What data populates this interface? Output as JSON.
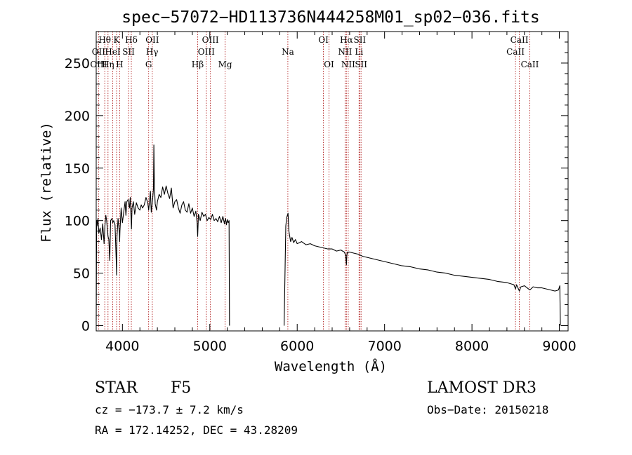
{
  "chart_data": {
    "type": "line",
    "title": "spec−57072−HD113736N444258M01_sp02−036.fits",
    "xlabel": "Wavelength (Å)",
    "ylabel": "Flux (relative)",
    "xlim": [
      3700,
      9100
    ],
    "ylim": [
      -5,
      280
    ],
    "xticks": [
      4000,
      5000,
      6000,
      7000,
      8000,
      9000
    ],
    "yticks": [
      0,
      50,
      100,
      150,
      200,
      250
    ],
    "grid": false,
    "series": [
      {
        "name": "spectrum",
        "color": "#000000",
        "segments": [
          {
            "x": [
              3700,
              3705,
              3710,
              3720,
              3730,
              3745,
              3760,
              3775,
              3790,
              3800,
              3810,
              3820,
              3835,
              3845,
              3855,
              3865,
              3880,
              3890,
              3900,
              3915,
              3930,
              3933,
              3938,
              3950,
              3965,
              3968,
              3972,
              3985,
              4000,
              4015,
              4030,
              4040,
              4050,
              4065,
              4080,
              4090,
              4100,
              4103,
              4110,
              4125,
              4140,
              4160,
              4180,
              4200,
              4215,
              4230,
              4250,
              4270,
              4290,
              4300,
              4310,
              4320,
              4330,
              4345,
              4355,
              4360,
              4365,
              4375,
              4390,
              4400,
              4420,
              4440,
              4460,
              4480,
              4500,
              4520,
              4540,
              4560,
              4580,
              4600,
              4620,
              4640,
              4660,
              4680,
              4700,
              4720,
              4740,
              4760,
              4780,
              4800,
              4820,
              4840,
              4855,
              4861,
              4870,
              4890,
              4910,
              4930,
              4950,
              4970,
              4990,
              5010,
              5030,
              5050,
              5070,
              5090,
              5110,
              5130,
              5150,
              5167,
              5170,
              5180,
              5190,
              5200,
              5210,
              5220,
              5225
            ],
            "y": [
              5,
              100,
              95,
              102,
              88,
              93,
              82,
              97,
              78,
              95,
              105,
              100,
              85,
              82,
              62,
              100,
              102,
              98,
              100,
              96,
              60,
              48,
              85,
              102,
              88,
              80,
              90,
              112,
              98,
              108,
              118,
              105,
              118,
              120,
              112,
              122,
              100,
              92,
              112,
              118,
              106,
              117,
              112,
              110,
              115,
              112,
              115,
              122,
              117,
              110,
              118,
              128,
              108,
              120,
              130,
              172,
              135,
              116,
              110,
              118,
              125,
              122,
              132,
              125,
              133,
              126,
              121,
              131,
              112,
              118,
              120,
              112,
              107,
              115,
              118,
              110,
              108,
              116,
              107,
              112,
              104,
              109,
              98,
              85,
              106,
              100,
              108,
              104,
              106,
              100,
              103,
              101,
              106,
              100,
              102,
              99,
              104,
              98,
              104,
              97,
              99,
              102,
              96,
              101,
              98,
              100,
              0
            ]
          },
          {
            "x": [
              5850,
              5870,
              5880,
              5895,
              5905,
              5915,
              5925,
              5940,
              5960,
              5980,
              6000,
              6050,
              6100,
              6150,
              6200,
              6250,
              6300,
              6350,
              6400,
              6450,
              6500,
              6540,
              6555,
              6563,
              6568,
              6575,
              6600,
              6650,
              6700,
              6750,
              6800,
              6850,
              6900,
              6950,
              7000,
              7100,
              7200,
              7300,
              7400,
              7500,
              7600,
              7700,
              7800,
              7900,
              8000,
              8100,
              8200,
              8300,
              8400,
              8480,
              8498,
              8510,
              8542,
              8560,
              8600,
              8662,
              8700,
              8750,
              8800,
              8850,
              8900,
              8950,
              8990,
              9005,
              9012
            ],
            "y": [
              0,
              95,
              103,
              107,
              90,
              85,
              80,
              84,
              79,
              82,
              78,
              80,
              77,
              78,
              76,
              75,
              74,
              73,
              73,
              71,
              72,
              70,
              67,
              58,
              67,
              70,
              70,
              69,
              68,
              66,
              65,
              64,
              63,
              62,
              61,
              59,
              57,
              56,
              54,
              53,
              51,
              50,
              48,
              47,
              46,
              45,
              44,
              42,
              41,
              39,
              35,
              39,
              33,
              37,
              38,
              34,
              37,
              36,
              36,
              35,
              34,
              33,
              34,
              38,
              0
            ]
          }
        ]
      }
    ],
    "lines": {
      "top": [
        {
          "label": "Hθ",
          "x": 3798
        },
        {
          "label": "K",
          "x": 3933
        },
        {
          "label": "Hδ",
          "x": 4102
        },
        {
          "label": "OII",
          "x": 4342
        },
        {
          "label": "OIII",
          "x": 5007
        },
        {
          "label": "OI",
          "x": 6300
        },
        {
          "label": "Hα",
          "x": 6563
        },
        {
          "label": "SII",
          "x": 6716
        },
        {
          "label": "CaII",
          "x": 8542
        }
      ],
      "mid": [
        {
          "label": "OII",
          "x": 3727
        },
        {
          "label": "HeI",
          "x": 3889
        },
        {
          "label": "SII",
          "x": 4070
        },
        {
          "label": "Hγ",
          "x": 4340
        },
        {
          "label": "OIII",
          "x": 4960
        },
        {
          "label": "Na",
          "x": 5893
        },
        {
          "label": "NII",
          "x": 6548
        },
        {
          "label": "Li",
          "x": 6708
        },
        {
          "label": "CaII",
          "x": 8498
        }
      ],
      "low": [
        {
          "label": "OIII",
          "x": 3727
        },
        {
          "label": "Hη",
          "x": 3835
        },
        {
          "label": "H",
          "x": 3968
        },
        {
          "label": "G",
          "x": 4300
        },
        {
          "label": "Hβ",
          "x": 4861
        },
        {
          "label": "Mg",
          "x": 5175
        },
        {
          "label": "OI",
          "x": 6364
        },
        {
          "label": "NII",
          "x": 6584
        },
        {
          "label": "SII",
          "x": 6731
        },
        {
          "label": "CaII",
          "x": 8662
        }
      ]
    }
  },
  "info": {
    "object_type": "STAR",
    "subclass": "F5",
    "survey": "LAMOST DR3",
    "cz": "cz = −173.7 ± 7.2 km/s",
    "obs_date": "Obs−Date: 20150218",
    "coords": "RA = 172.14252, DEC =  43.28209"
  },
  "colors": {
    "axes": "#000000",
    "spectrum": "#000000",
    "line_markers": "#b22222"
  }
}
